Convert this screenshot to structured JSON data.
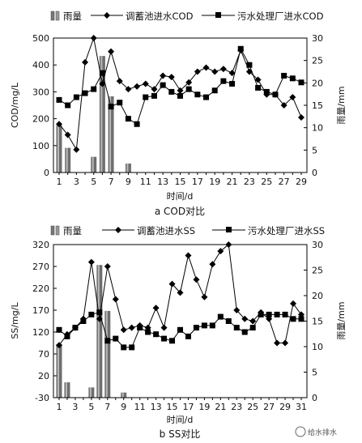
{
  "chart_data": [
    {
      "type": "bar",
      "caption": "a COD对比",
      "xlabel": "时间/d",
      "ylabel": "COD/mg/L",
      "y2label": "雨量/mm",
      "x": [
        1,
        2,
        3,
        4,
        5,
        6,
        7,
        8,
        9,
        10,
        11,
        12,
        13,
        14,
        15,
        16,
        17,
        18,
        19,
        20,
        21,
        22,
        23,
        24,
        25,
        26,
        27,
        28,
        29
      ],
      "xticks": [
        "1",
        "3",
        "5",
        "7",
        "9",
        "11",
        "13",
        "15",
        "17",
        "19",
        "21",
        "23",
        "25",
        "27",
        "29"
      ],
      "ylim": [
        0,
        500
      ],
      "yticks": [
        "0",
        "100",
        "200",
        "300",
        "400",
        "500"
      ],
      "y2lim": [
        0,
        30
      ],
      "y2ticks": [
        "0",
        "5",
        "10",
        "15",
        "20",
        "25",
        "30"
      ],
      "legend": {
        "rain": "雨量",
        "tank": "调蓄池进水COD",
        "plant": "污水处理厂进水COD"
      },
      "rain": [
        {
          "x": 1,
          "v": 10.5
        },
        {
          "x": 2,
          "v": 5.5
        },
        {
          "x": 5,
          "v": 3.5
        },
        {
          "x": 6,
          "v": 26
        },
        {
          "x": 7,
          "v": 17
        },
        {
          "x": 9,
          "v": 2
        }
      ],
      "series": [
        {
          "name": "调蓄池进水COD",
          "marker": "diamond",
          "values": [
            180,
            140,
            85,
            410,
            500,
            330,
            450,
            340,
            310,
            320,
            330,
            310,
            360,
            355,
            305,
            335,
            375,
            390,
            375,
            385,
            370,
            455,
            375,
            345,
            290,
            290,
            250,
            280,
            205
          ]
        },
        {
          "name": "污水处理厂进水COD",
          "marker": "square",
          "values": [
            270,
            250,
            280,
            295,
            310,
            370,
            245,
            260,
            200,
            180,
            280,
            285,
            325,
            300,
            285,
            310,
            290,
            280,
            305,
            340,
            330,
            460,
            400,
            315,
            300,
            290,
            360,
            350,
            335
          ]
        }
      ]
    },
    {
      "type": "bar",
      "caption": "b SS对比",
      "xlabel": "时间/d",
      "ylabel": "SS/mg/L",
      "y2label": "雨量/mm",
      "x": [
        1,
        2,
        3,
        4,
        5,
        6,
        7,
        8,
        9,
        10,
        11,
        12,
        13,
        14,
        15,
        16,
        17,
        18,
        19,
        20,
        21,
        22,
        23,
        24,
        25,
        26,
        27,
        28,
        29,
        30,
        31
      ],
      "xticks": [
        "1",
        "3",
        "5",
        "7",
        "9",
        "11",
        "13",
        "15",
        "17",
        "19",
        "21",
        "23",
        "25",
        "27",
        "29",
        "31"
      ],
      "ylim": [
        -30,
        320
      ],
      "yticks": [
        "-30",
        "20",
        "70",
        "120",
        "170",
        "220",
        "270",
        "320"
      ],
      "y2lim": [
        0,
        30
      ],
      "y2ticks": [
        "0",
        "5",
        "10",
        "15",
        "20",
        "25",
        "30"
      ],
      "legend": {
        "rain": "雨量",
        "tank": "调蓄池进水SS",
        "plant": "污水处理厂进水SS"
      },
      "rain": [
        {
          "x": 1,
          "v": 10.5
        },
        {
          "x": 2,
          "v": 3
        },
        {
          "x": 5,
          "v": 2
        },
        {
          "x": 6,
          "v": 26
        },
        {
          "x": 7,
          "v": 17
        },
        {
          "x": 9,
          "v": 1
        }
      ],
      "series": [
        {
          "name": "调蓄池进水SS",
          "marker": "diamond",
          "values": [
            90,
            115,
            130,
            150,
            280,
            150,
            270,
            195,
            125,
            130,
            135,
            130,
            175,
            130,
            230,
            210,
            295,
            240,
            200,
            275,
            305,
            320,
            170,
            150,
            145,
            165,
            150,
            95,
            95,
            185,
            160
          ]
        },
        {
          "name": "污水处理厂进水SS",
          "marker": "square",
          "values": [
            125,
            110,
            130,
            145,
            160,
            165,
            100,
            105,
            85,
            85,
            130,
            120,
            115,
            105,
            100,
            125,
            110,
            130,
            135,
            135,
            155,
            145,
            130,
            120,
            130,
            160,
            160,
            160,
            160,
            150,
            150
          ]
        }
      ]
    }
  ],
  "watermark": "给水排水"
}
